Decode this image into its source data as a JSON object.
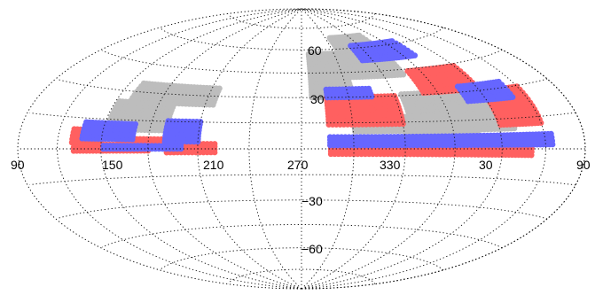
{
  "map": {
    "projection": "Aitoff/Hammer all-sky",
    "background": "#ffffff",
    "grid": {
      "longitude_lines": [
        90,
        120,
        150,
        180,
        210,
        240,
        270,
        300,
        330,
        0,
        30,
        60,
        90
      ],
      "latitude_lines": [
        -75,
        -60,
        -45,
        -30,
        -15,
        0,
        15,
        30,
        45,
        60,
        75
      ]
    },
    "labels": {
      "lon_90_left": "90",
      "lon_150": "150",
      "lon_210": "210",
      "lon_270": "270",
      "lon_330": "330",
      "lon_30": "30",
      "lon_90_right": "90",
      "lat_60": "60",
      "lat_30": "30",
      "lat_minus_30": "−30",
      "lat_minus_60": "−60"
    }
  },
  "chart_data": {
    "type": "scatter",
    "title": "",
    "xlabel": "",
    "ylabel": "",
    "grid": true,
    "legend": "none",
    "coordinate_system": "sky map: longitude and latitude in degrees",
    "series": [
      {
        "color": "#bdbdbd",
        "regions": [
          {
            "ra_range": [
              195,
              235
            ],
            "dec_range": [
              42,
              68
            ]
          },
          {
            "ra_range": [
              237,
              265
            ],
            "dec_range": [
              30,
              58
            ]
          },
          {
            "ra_range": [
              150,
              205
            ],
            "dec_range": [
              18,
              31
            ]
          },
          {
            "ra_range": [
              140,
              240
            ],
            "dec_range": [
              10,
              18
            ]
          },
          {
            "ra_range": [
              165,
              210
            ],
            "dec_range": [
              5,
              10
            ]
          },
          {
            "ra_range": [
              325,
              20
            ],
            "dec_range": [
              25,
              36
            ]
          },
          {
            "ra_range": [
              350,
              28
            ],
            "dec_range": [
              10,
              25
            ]
          }
        ]
      },
      {
        "color": "#ff6060",
        "regions": [
          {
            "ra_range": [
              120,
              150
            ],
            "dec_range": [
              12,
              31
            ]
          },
          {
            "ra_range": [
              150,
              190
            ],
            "dec_range": [
              31,
              44
            ]
          },
          {
            "ra_range": [
              210,
              255
            ],
            "dec_range": [
              14,
              31
            ]
          },
          {
            "ra_range": [
              130,
              255
            ],
            "dec_range": [
              -3,
              1
            ]
          },
          {
            "ra_range": [
              320,
              350
            ],
            "dec_range": [
              -2,
              4
            ]
          },
          {
            "ra_range": [
              0,
              50
            ],
            "dec_range": [
              -1,
              3
            ]
          },
          {
            "ra_range": [
              30,
              50
            ],
            "dec_range": [
              3,
              10
            ]
          },
          {
            "ra_range": [
              330,
              20
            ],
            "dec_range": [
              2,
              6
            ]
          }
        ]
      },
      {
        "color": "#6666ff",
        "regions": [
          {
            "ra_range": [
              170,
              220
            ],
            "dec_range": [
              52,
              62
            ]
          },
          {
            "ra_range": [
              130,
              165
            ],
            "dec_range": [
              25,
              34
            ]
          },
          {
            "ra_range": [
              115,
              255
            ],
            "dec_range": [
              2,
              8
            ]
          },
          {
            "ra_range": [
              225,
              255
            ],
            "dec_range": [
              30,
              36
            ]
          },
          {
            "ra_range": [
              330,
              350
            ],
            "dec_range": [
              4,
              16
            ]
          },
          {
            "ra_range": [
              10,
              45
            ],
            "dec_range": [
              5,
              14
            ]
          },
          {
            "ra_range": [
              340,
              30
            ],
            "dec_range": [
              0,
              2
            ]
          }
        ]
      }
    ]
  }
}
